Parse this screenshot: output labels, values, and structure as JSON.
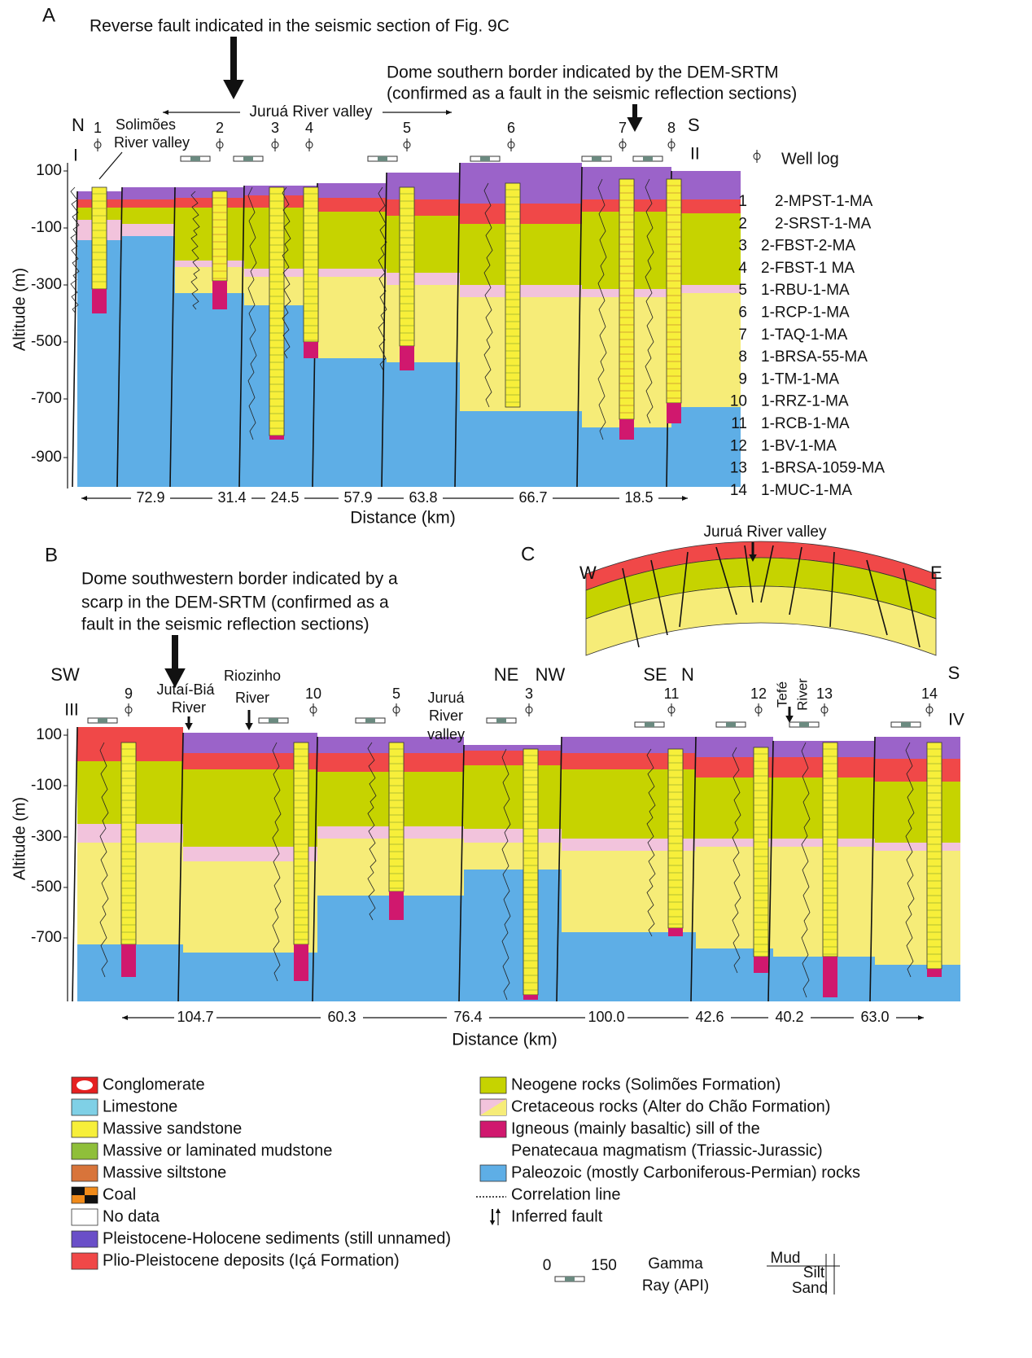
{
  "panel_a": {
    "label": "A",
    "annotation_fault": "Reverse fault indicated in the seismic section of Fig. 9C",
    "annotation_dome": [
      "Dome southern border indicated by the DEM-SRTM",
      "(confirmed as a fault in the seismic reflection sections)"
    ],
    "valley_label": "Juruá River valley",
    "solimoes_label": [
      "Solimões",
      "River valley"
    ],
    "direction_left": "N",
    "direction_right": "S",
    "section_start": "I",
    "section_end": "II",
    "wells": [
      "1",
      "2",
      "3",
      "4",
      "5",
      "6",
      "7",
      "8"
    ],
    "y_axis_label": "Altitude (m)",
    "y_ticks": [
      "100",
      "-100",
      "-300",
      "-500",
      "-700",
      "-900"
    ],
    "distances": [
      "72.9",
      "31.4",
      "24.5",
      "57.9",
      "63.8",
      "66.7",
      "18.5"
    ],
    "x_axis_label": "Distance (km)"
  },
  "well_list": {
    "title": "Well log",
    "items": [
      {
        "number": "1",
        "name": "2-MPST-1-MA"
      },
      {
        "number": "2",
        "name": "2-SRST-1-MA"
      },
      {
        "number": "3",
        "name": "2-FBST-2-MA"
      },
      {
        "number": "4",
        "name": "2-FBST-1 MA"
      },
      {
        "number": "5",
        "name": "1-RBU-1-MA"
      },
      {
        "number": "6",
        "name": "1-RCP-1-MA"
      },
      {
        "number": "7",
        "name": "1-TAQ-1-MA"
      },
      {
        "number": "8",
        "name": "1-BRSA-55-MA"
      },
      {
        "number": "9",
        "name": "1-TM-1-MA"
      },
      {
        "number": "10",
        "name": "1-RRZ-1-MA"
      },
      {
        "number": "11",
        "name": "1-RCB-1-MA"
      },
      {
        "number": "12",
        "name": "1-BV-1-MA"
      },
      {
        "number": "13",
        "name": "1-BRSA-1059-MA"
      },
      {
        "number": "14",
        "name": "1-MUC-1-MA"
      }
    ]
  },
  "panel_b": {
    "label": "B",
    "annotation": [
      "Dome southwestern border indicated by a",
      "scarp in the DEM-SRTM (confirmed as a",
      "fault in the seismic reflection sections)"
    ],
    "top_labels": [
      "SW",
      "III",
      "9",
      "Jutaí-Biá",
      "River",
      "Riozinho",
      "River",
      "10",
      "5",
      "Juruá",
      "River",
      "valley",
      "NE",
      "NW",
      "3",
      "SE",
      "N",
      "11",
      "12",
      "Tefé",
      "River",
      "13",
      "S",
      "14",
      "IV"
    ],
    "y_axis_label": "Altitude (m)",
    "y_ticks": [
      "100",
      "-100",
      "-300",
      "-500",
      "-700"
    ],
    "distances": [
      "104.7",
      "60.3",
      "76.4",
      "100.0",
      "42.6",
      "40.2",
      "63.0"
    ],
    "x_axis_label": "Distance (km)"
  },
  "panel_c": {
    "label": "C",
    "west": "W",
    "east": "E",
    "valley_label": "Juruá River valley"
  },
  "legend": {
    "left": [
      "Conglomerate",
      "Limestone",
      "Massive sandstone",
      "Massive or laminated mudstone",
      "Massive siltstone",
      "Coal",
      "No data",
      "Pleistocene-Holocene sediments (still unnamed)",
      "Plio-Pleistocene deposits (Içá Formation)"
    ],
    "right": [
      "Neogene rocks (Solimões Formation)",
      "Cretaceous rocks (Alter do Chão Formation)",
      "Igneous (mainly basaltic) sill of the",
      "Penatecaua magmatism (Triassic-Jurassic)",
      "Paleozoic (mostly Carboniferous-Permian) rocks",
      "Correlation line",
      "Inferred fault"
    ],
    "scale": [
      "0",
      "150"
    ],
    "gamma": [
      "Gamma",
      "Ray (API)"
    ],
    "grain": [
      "Mud",
      "Silt",
      "Sand"
    ]
  }
}
